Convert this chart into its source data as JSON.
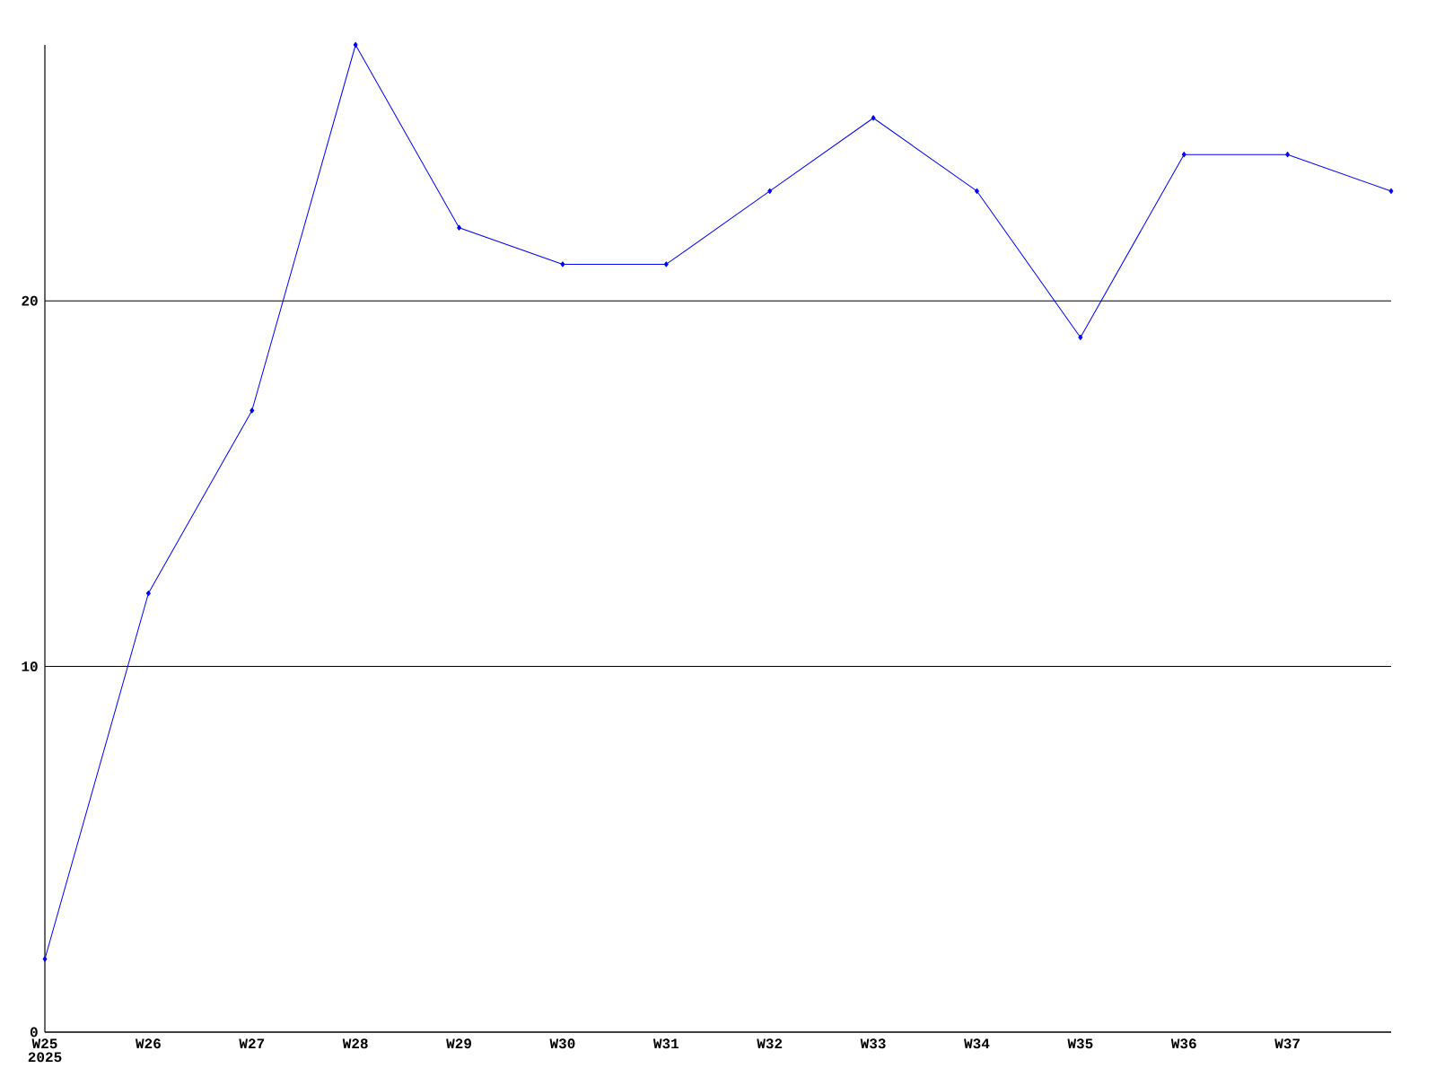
{
  "chart_data": {
    "type": "line",
    "categories": [
      "W25",
      "W26",
      "W27",
      "W28",
      "W29",
      "W30",
      "W31",
      "W32",
      "W33",
      "W34",
      "W35",
      "W36",
      "W37",
      null
    ],
    "values": [
      2,
      12,
      17,
      27,
      22,
      21,
      21,
      23,
      25,
      23,
      19,
      24,
      24,
      23
    ],
    "color": "#0000ff",
    "marker": "diamond",
    "line_style": "solid",
    "ylim": [
      0,
      27
    ],
    "yticks": [
      0,
      10,
      20
    ],
    "grid": "y",
    "annotations": [
      "2025"
    ]
  }
}
